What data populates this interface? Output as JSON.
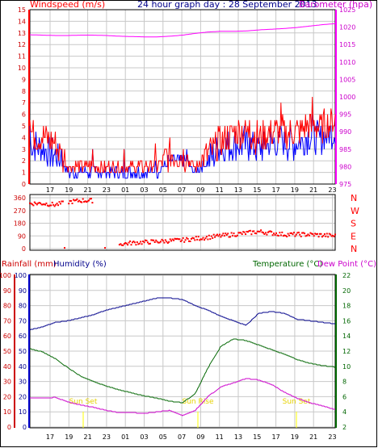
{
  "header": {
    "wind_label": "Windspeed (m/s)",
    "title": "24 hour graph day : 28 September 2013",
    "baro_label": "Barometer (hpa)"
  },
  "colors": {
    "wind_red": "#ff0000",
    "wind_blue": "#0000ff",
    "baro": "#ff00ff",
    "temp": "#006600",
    "humidity": "#00008b",
    "dew": "#cc00cc",
    "axis_red": "#cc0000",
    "grid": "#c8c8c8",
    "sun": "#ffff00"
  },
  "x_ticks": [
    "17",
    "19",
    "21",
    "23",
    "01",
    "03",
    "05",
    "07",
    "09",
    "11",
    "13",
    "15",
    "17",
    "19",
    "21",
    "23"
  ],
  "compass_labels": [
    "N",
    "W",
    "S",
    "E",
    "N"
  ],
  "bottom_labels": {
    "rainfall": "Rainfall (mm)",
    "humidity": "Humidity (%)",
    "temperature": "Temperature (°C)",
    "dewpoint": "Dew Point (°C)"
  },
  "annotations": [
    "Sun Set",
    "Sun Rise",
    "Sun Set"
  ],
  "chart_data": [
    {
      "type": "line",
      "title": "24 hour graph day : 28 September 2013",
      "ylabel": "Windspeed (m/s)",
      "ylabel_right": "Barometer (hpa)",
      "ylim": [
        0,
        15
      ],
      "ylim_right": [
        975,
        1025
      ],
      "yticks": [
        0,
        1,
        2,
        3,
        4,
        5,
        6,
        7,
        8,
        9,
        10,
        11,
        12,
        13,
        14,
        15
      ],
      "yticks_right": [
        975,
        980,
        985,
        990,
        995,
        1000,
        1005,
        1010,
        1015,
        1020,
        1025
      ],
      "x": [
        16,
        17,
        18,
        19,
        20,
        21,
        22,
        23,
        24,
        25,
        26,
        27,
        28,
        29,
        30,
        31,
        32,
        33,
        34,
        35,
        36,
        37,
        38,
        39,
        40
      ],
      "series": [
        {
          "name": "Windspeed",
          "axis": "left",
          "color": "#ff0000",
          "values": [
            4.5,
            4.0,
            3.5,
            1.5,
            1.5,
            1.5,
            1.5,
            1.5,
            1.5,
            1.5,
            1.5,
            2.5,
            2.5,
            1.5,
            2.5,
            3.5,
            4.5,
            4.5,
            4.0,
            4.5,
            4.5,
            4.5,
            5.0,
            5.0,
            5.5
          ]
        },
        {
          "name": "Wind Gust",
          "axis": "left",
          "color": "#0000ff",
          "values": [
            3.5,
            3.0,
            2.5,
            1.0,
            1.0,
            1.0,
            1.0,
            1.0,
            1.0,
            1.0,
            1.0,
            2.0,
            2.0,
            1.0,
            2.0,
            3.0,
            3.5,
            3.5,
            3.0,
            3.5,
            3.5,
            3.5,
            4.0,
            4.0,
            4.5
          ]
        },
        {
          "name": "Barometer",
          "axis": "right",
          "color": "#ff00ff",
          "values": [
            1017.8,
            1017.7,
            1017.6,
            1017.6,
            1017.7,
            1017.7,
            1017.6,
            1017.4,
            1017.3,
            1017.2,
            1017.2,
            1017.4,
            1017.7,
            1018.2,
            1018.6,
            1018.8,
            1018.8,
            1018.9,
            1019.2,
            1019.4,
            1019.6,
            1019.9,
            1020.3,
            1020.7,
            1021.0
          ]
        }
      ]
    },
    {
      "type": "scatter",
      "ylabel_right": "Wind Direction",
      "ylim": [
        0,
        360
      ],
      "yticks": [
        0,
        90,
        180,
        270,
        360
      ],
      "x": [
        16,
        17,
        18,
        19,
        20,
        21,
        22,
        23,
        24,
        25,
        26,
        27,
        28,
        29,
        30,
        31,
        32,
        33,
        34,
        35,
        36,
        37,
        38,
        39,
        40
      ],
      "series": [
        {
          "name": "Wind Direction",
          "color": "#ff0000",
          "values": [
            320,
            320,
            310,
            330,
            340,
            340,
            null,
            30,
            40,
            45,
            50,
            55,
            60,
            70,
            80,
            90,
            100,
            110,
            120,
            110,
            100,
            100,
            100,
            95,
            90
          ]
        }
      ]
    },
    {
      "type": "line",
      "ylabel": "Rainfall (mm) Humidity (%)",
      "ylabel_right": "Temperature (°C) Dew Point (°C)",
      "ylim": [
        0,
        100
      ],
      "ylim_right": [
        2,
        22
      ],
      "yticks": [
        0,
        10,
        20,
        30,
        40,
        50,
        60,
        70,
        80,
        90,
        100
      ],
      "yticks_right": [
        2,
        4,
        6,
        8,
        10,
        12,
        14,
        16,
        18,
        20,
        22
      ],
      "x": [
        16,
        17,
        18,
        19,
        20,
        21,
        22,
        23,
        24,
        25,
        26,
        27,
        28,
        29,
        30,
        31,
        32,
        33,
        34,
        35,
        36,
        37,
        38,
        39,
        40
      ],
      "series": [
        {
          "name": "Humidity",
          "axis": "left",
          "color": "#00008b",
          "values": [
            64,
            66,
            69,
            70,
            72,
            74,
            77,
            79,
            81,
            83,
            85,
            85,
            84,
            80,
            77,
            73,
            70,
            67,
            75,
            76,
            75,
            71,
            70,
            69,
            68
          ]
        },
        {
          "name": "Temperature",
          "axis": "right",
          "color": "#006600",
          "values": [
            12.3,
            11.9,
            11.0,
            9.8,
            8.7,
            8.0,
            7.4,
            6.9,
            6.5,
            6.1,
            5.8,
            5.4,
            5.2,
            6.4,
            9.8,
            12.6,
            13.6,
            13.4,
            12.8,
            12.2,
            11.6,
            10.9,
            10.4,
            10.1,
            9.9
          ]
        },
        {
          "name": "Dew Point",
          "axis": "right",
          "color": "#cc00cc",
          "values": [
            5.8,
            5.8,
            5.9,
            5.3,
            4.9,
            4.6,
            4.2,
            3.9,
            3.9,
            3.8,
            4.0,
            4.2,
            3.5,
            4.2,
            6.0,
            7.3,
            7.8,
            8.4,
            8.2,
            7.6,
            6.6,
            5.8,
            5.2,
            4.8,
            4.3
          ]
        }
      ]
    }
  ]
}
